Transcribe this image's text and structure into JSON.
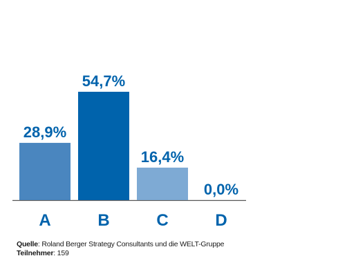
{
  "chart_data": {
    "type": "bar",
    "categories": [
      "A",
      "B",
      "C",
      "D"
    ],
    "values": [
      28.9,
      54.7,
      16.4,
      0.0
    ],
    "value_labels": [
      "28,9%",
      "54,7%",
      "16,4%",
      "0,0%"
    ],
    "ylim": [
      0,
      60
    ],
    "grid": false,
    "colors": [
      "#4a86bf",
      "#0063ac",
      "#7eaad4",
      "#0063ac"
    ],
    "label_color": "#0063ac",
    "baseline_color": "#555555"
  },
  "footer": {
    "source_label": "Quelle",
    "source_text": ": Roland Berger Strategy Consultants und die WELT-Gruppe",
    "participants_label": "Teilnehmer",
    "participants_text": ": 159"
  }
}
